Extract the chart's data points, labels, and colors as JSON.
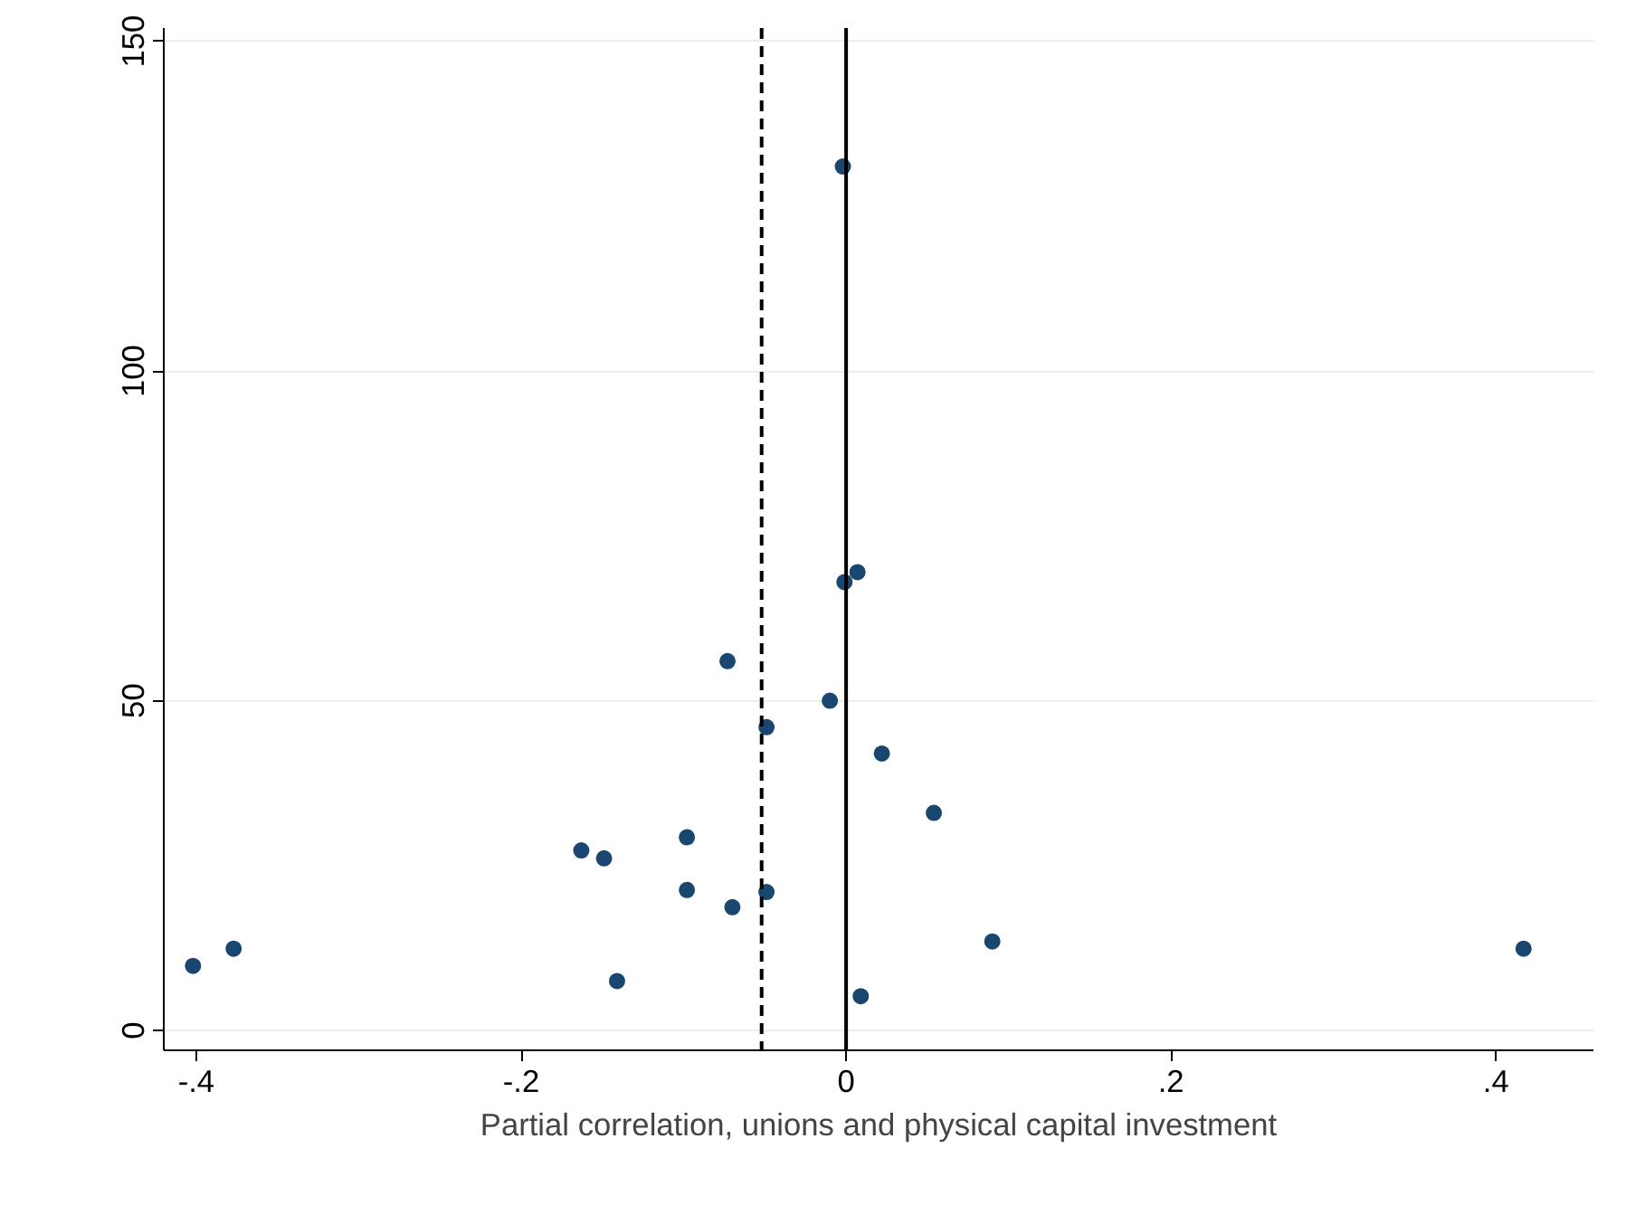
{
  "chart_data": {
    "type": "scatter",
    "xlabel": "Partial correlation, unions and physical capital investment",
    "x": [
      -0.402,
      -0.377,
      -0.163,
      -0.149,
      -0.141,
      -0.098,
      -0.098,
      -0.073,
      -0.07,
      -0.049,
      -0.049,
      -0.01,
      -0.002,
      -0.001,
      0.007,
      0.009,
      0.022,
      0.054,
      0.09,
      0.417
    ],
    "series": [
      {
        "color": "#1a476f",
        "values": [
          9.8,
          12.4,
          27.3,
          26.1,
          7.5,
          29.3,
          21.3,
          56,
          18.7,
          46,
          21,
          50,
          131,
          68,
          69.5,
          5.2,
          42,
          33,
          13.5,
          12.4
        ]
      }
    ],
    "xlim": [
      -0.42,
      0.46
    ],
    "ylim": [
      -3,
      152
    ],
    "xticks": [
      {
        "value": -0.4,
        "label": "-.4"
      },
      {
        "value": -0.2,
        "label": "-.2"
      },
      0,
      {
        "value": 0.2,
        "label": ".2"
      },
      {
        "value": 0.4,
        "label": ".4"
      }
    ],
    "yticks": [
      0,
      50,
      100,
      150
    ],
    "grid": "y",
    "marker": "circle",
    "ref_lines": [
      {
        "axis": "x",
        "value": 0,
        "color": "#000000",
        "line_style": "solid"
      },
      {
        "axis": "x",
        "value": -0.052,
        "color": "#000000",
        "line_style": "dashed"
      }
    ]
  }
}
